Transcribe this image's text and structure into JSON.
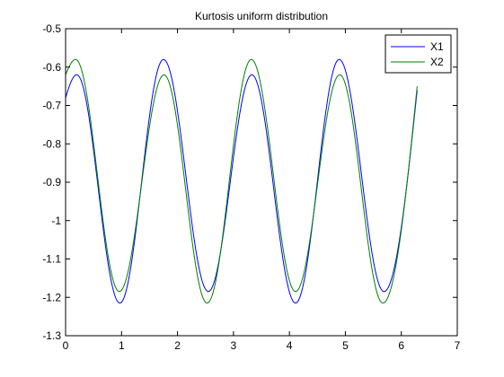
{
  "chart_data": {
    "type": "line",
    "title": "Kurtosis uniform distribution",
    "xlabel": "",
    "ylabel": "",
    "xlim": [
      0,
      7
    ],
    "ylim": [
      -1.3,
      -0.5
    ],
    "xticks": [
      0,
      1,
      2,
      3,
      4,
      5,
      6,
      7
    ],
    "xtick_labels": [
      "0",
      "1",
      "2",
      "3",
      "4",
      "5",
      "6",
      "7"
    ],
    "yticks": [
      -1.3,
      -1.2,
      -1.1,
      -1.0,
      -0.9,
      -0.8,
      -0.7,
      -0.6,
      -0.5
    ],
    "ytick_labels": [
      "-1.3",
      "-1.2",
      "-1.1",
      "-1",
      "-0.9",
      "-0.8",
      "-0.7",
      "-0.6",
      "-0.5"
    ],
    "grid": false,
    "legend_position": "top-right",
    "series": [
      {
        "name": "X1",
        "color": "#0000ff",
        "x_range": [
          0,
          6.283
        ],
        "y_start": -0.68,
        "y_end": -0.66,
        "peaks": [
          [
            0.2,
            -0.62
          ],
          [
            1.75,
            -0.58
          ],
          [
            3.33,
            -0.62
          ],
          [
            4.89,
            -0.58
          ]
        ],
        "troughs": [
          [
            0.97,
            -1.215
          ],
          [
            2.55,
            -1.185
          ],
          [
            4.11,
            -1.215
          ],
          [
            5.69,
            -1.185
          ]
        ]
      },
      {
        "name": "X2",
        "color": "#008000",
        "x_range": [
          0,
          6.283
        ],
        "y_start": -0.62,
        "y_end": -0.65,
        "peaks": [
          [
            0.18,
            -0.58
          ],
          [
            1.76,
            -0.62
          ],
          [
            3.32,
            -0.58
          ],
          [
            4.9,
            -0.62
          ]
        ],
        "troughs": [
          [
            0.96,
            -1.185
          ],
          [
            2.53,
            -1.215
          ],
          [
            4.11,
            -1.185
          ],
          [
            5.67,
            -1.215
          ]
        ]
      }
    ]
  }
}
